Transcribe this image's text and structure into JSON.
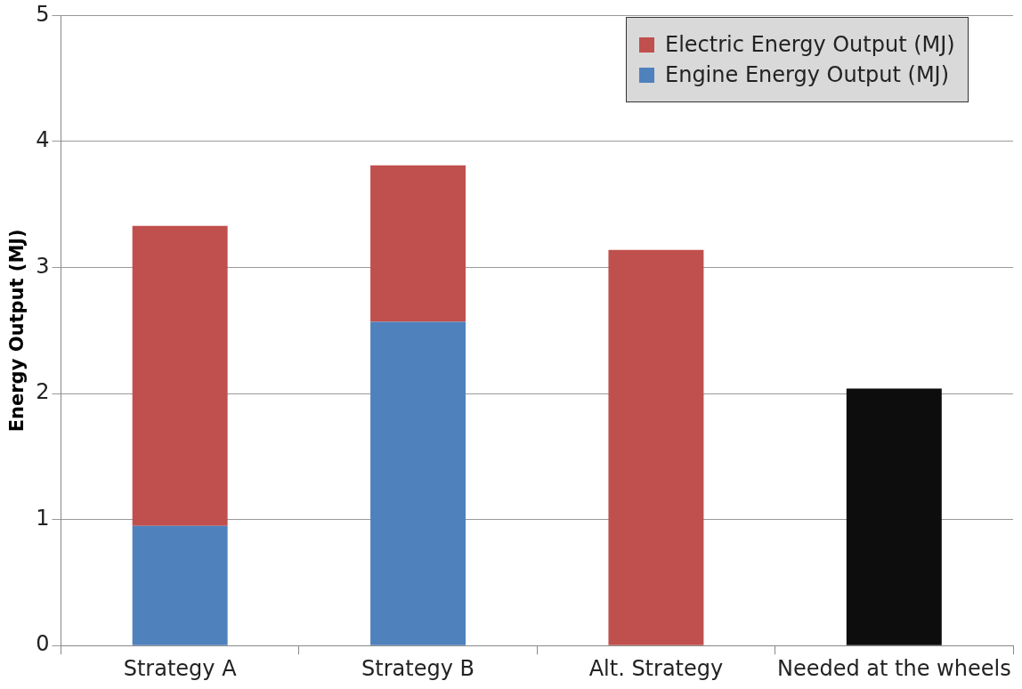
{
  "chart_data": {
    "type": "bar",
    "stacked": true,
    "ylabel": "Energy Output (MJ)",
    "categories": [
      "Strategy A",
      "Strategy B",
      "Alt. Strategy",
      "Needed at the wheels"
    ],
    "series": [
      {
        "name": "Engine Energy Output (MJ)",
        "color": "#4f81bd",
        "values": [
          0.95,
          2.57,
          null,
          null
        ]
      },
      {
        "name": "Electric Energy Output (MJ)",
        "color": "#c0504d",
        "values": [
          2.38,
          1.24,
          3.14,
          null
        ]
      },
      {
        "color": "#0d0d0d",
        "values": [
          null,
          null,
          null,
          2.04
        ]
      }
    ],
    "ylim": [
      0,
      5
    ],
    "yticks": [
      0,
      1,
      2,
      3,
      4,
      5
    ],
    "grid": "y",
    "legend": "top right"
  }
}
